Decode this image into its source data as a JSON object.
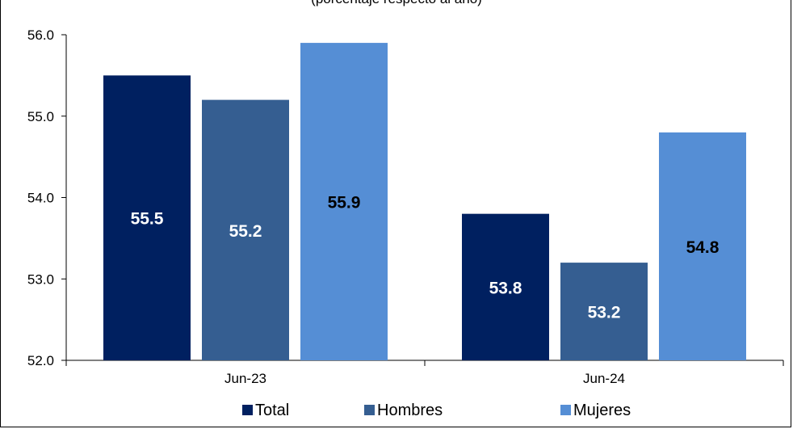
{
  "chart_data": {
    "type": "bar",
    "subtitle": "(porcentaje respecto al año)",
    "categories": [
      "Jun-23",
      "Jun-24"
    ],
    "series": [
      {
        "name": "Total",
        "values": [
          55.5,
          53.8
        ],
        "color": "#002060",
        "label_color": "#ffffff"
      },
      {
        "name": "Hombres",
        "values": [
          55.2,
          53.2
        ],
        "color": "#355E91",
        "label_color": "#ffffff"
      },
      {
        "name": "Mujeres",
        "values": [
          55.9,
          54.8
        ],
        "color": "#558ED5",
        "label_color": "#000000"
      }
    ],
    "ylim": [
      52.0,
      56.0
    ],
    "yticks": [
      "52.0",
      "53.0",
      "54.0",
      "55.0",
      "56.0"
    ],
    "legend_position": "bottom",
    "grid": false
  }
}
